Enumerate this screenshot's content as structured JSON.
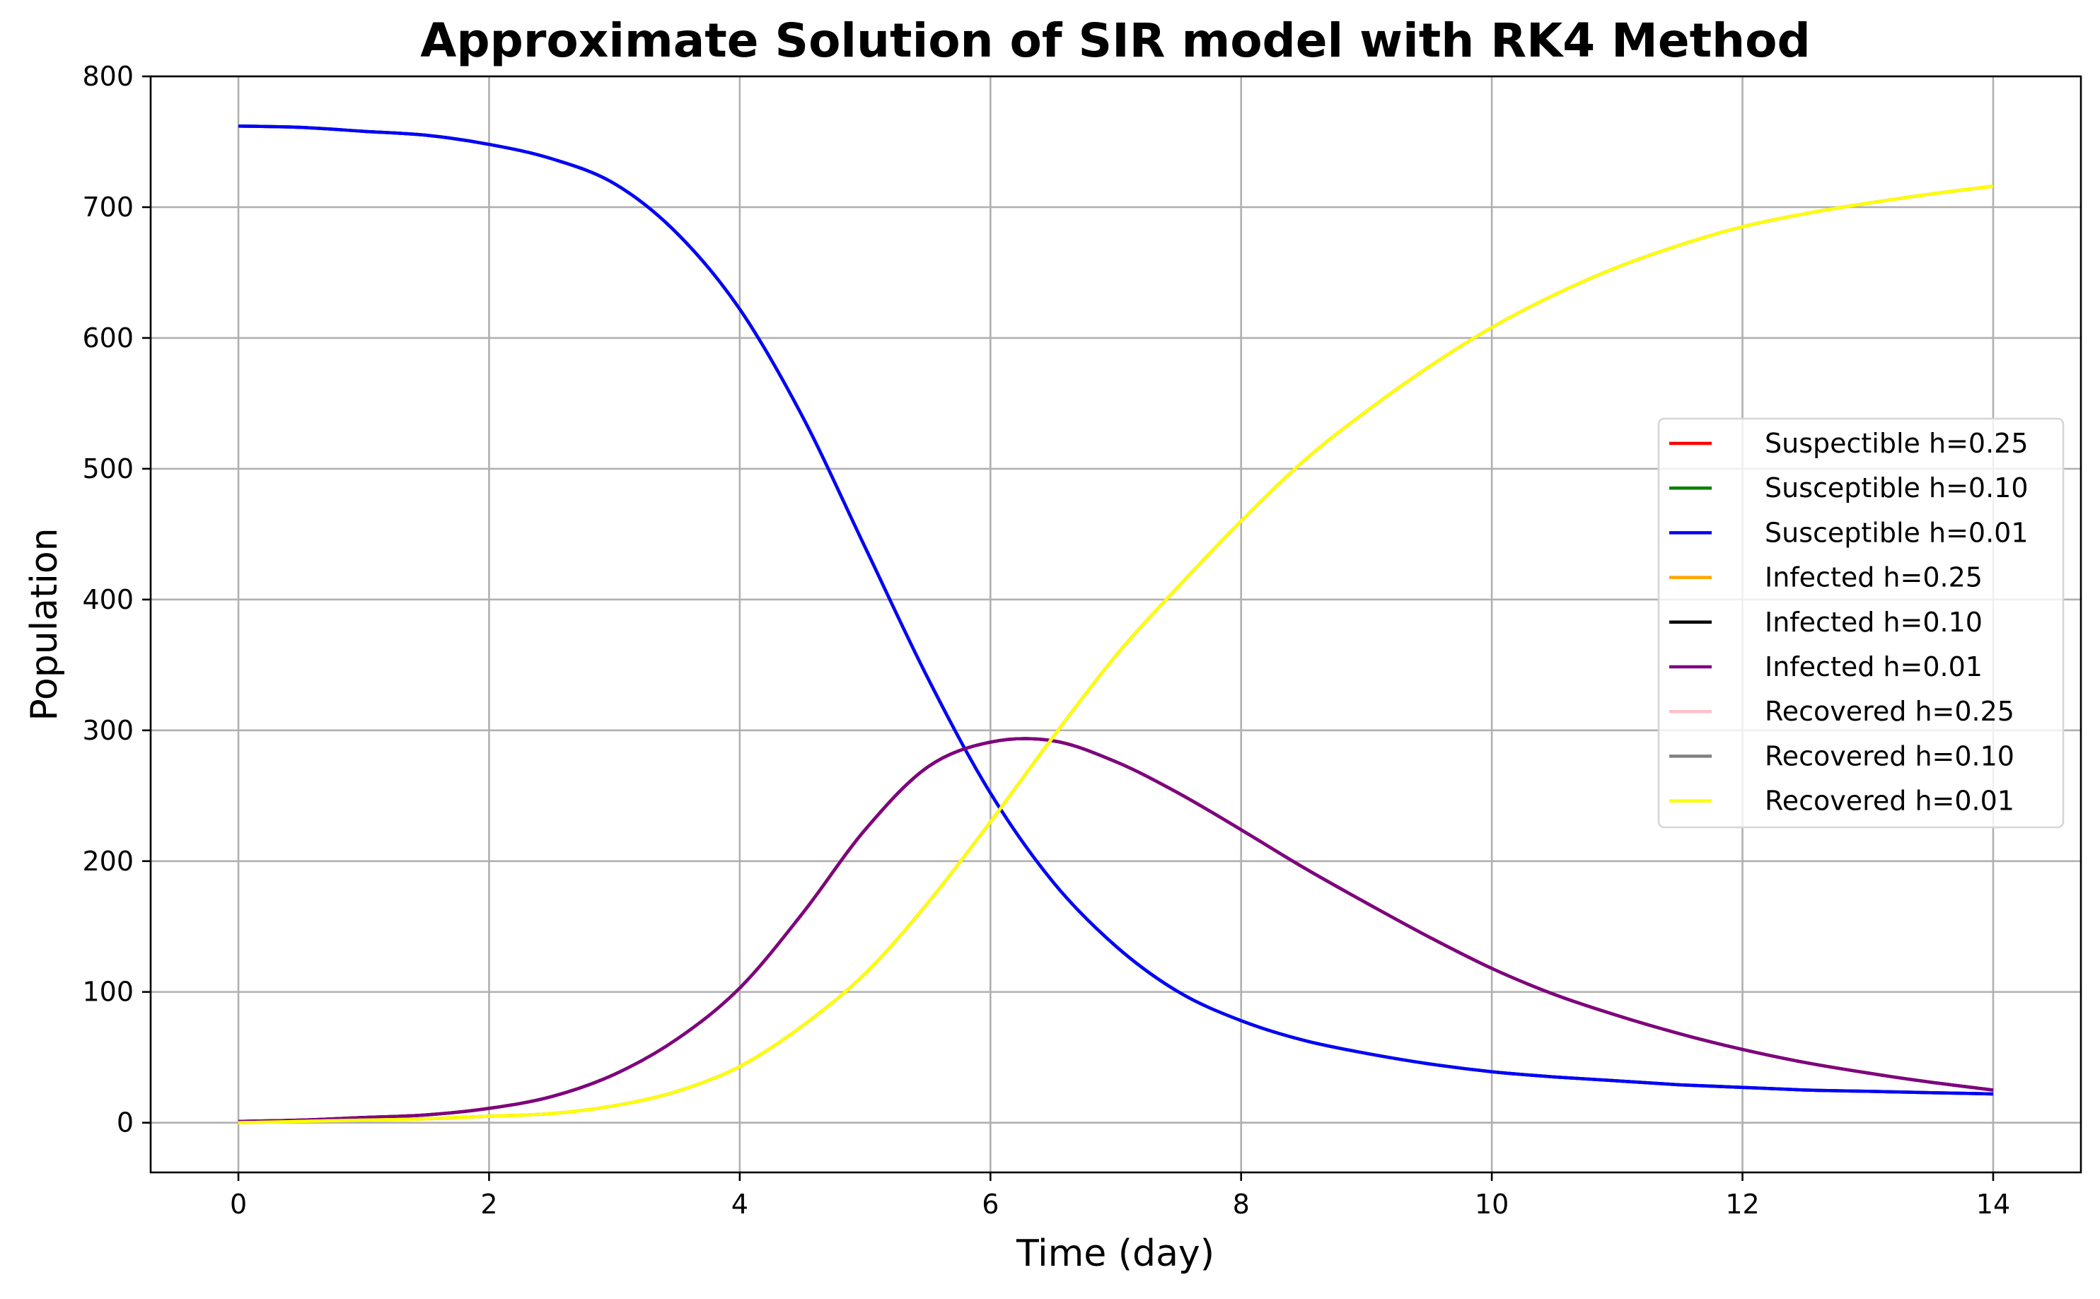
{
  "chart_data": {
    "type": "line",
    "title": "Approximate Solution of SIR model with RK4 Method",
    "xlabel": "Time (day)",
    "ylabel": "Population",
    "xlim": [
      -0.7,
      14.7
    ],
    "ylim": [
      -38,
      800
    ],
    "xticks": [
      0,
      2,
      4,
      6,
      8,
      10,
      12,
      14
    ],
    "yticks": [
      0,
      100,
      200,
      300,
      400,
      500,
      600,
      700,
      800
    ],
    "grid": true,
    "legend_position": "center-right",
    "series": [
      {
        "name": "Suspectible h=0.25",
        "color": "#ff0000",
        "x": [
          0,
          0.5,
          1,
          1.5,
          2,
          2.5,
          3,
          3.5,
          4,
          4.5,
          5,
          5.5,
          6,
          6.5,
          7,
          7.5,
          8,
          8.5,
          9,
          9.5,
          10,
          10.5,
          11,
          11.5,
          12,
          12.5,
          13,
          13.5,
          14
        ],
        "y": [
          762,
          761,
          758,
          755,
          748,
          737,
          718,
          680,
          622,
          540,
          440,
          340,
          252,
          184,
          135,
          100,
          78,
          63,
          53,
          45,
          39,
          35,
          32,
          29,
          27,
          25,
          24,
          23,
          22
        ]
      },
      {
        "name": "Susceptible h=0.10",
        "color": "#008000",
        "x": [
          0,
          0.5,
          1,
          1.5,
          2,
          2.5,
          3,
          3.5,
          4,
          4.5,
          5,
          5.5,
          6,
          6.5,
          7,
          7.5,
          8,
          8.5,
          9,
          9.5,
          10,
          10.5,
          11,
          11.5,
          12,
          12.5,
          13,
          13.5,
          14
        ],
        "y": [
          762,
          761,
          758,
          755,
          748,
          737,
          718,
          680,
          622,
          540,
          440,
          340,
          252,
          184,
          135,
          100,
          78,
          63,
          53,
          45,
          39,
          35,
          32,
          29,
          27,
          25,
          24,
          23,
          22
        ]
      },
      {
        "name": "Susceptible h=0.01",
        "color": "#0000ff",
        "x": [
          0,
          0.5,
          1,
          1.5,
          2,
          2.5,
          3,
          3.5,
          4,
          4.5,
          5,
          5.5,
          6,
          6.5,
          7,
          7.5,
          8,
          8.5,
          9,
          9.5,
          10,
          10.5,
          11,
          11.5,
          12,
          12.5,
          13,
          13.5,
          14
        ],
        "y": [
          762,
          761,
          758,
          755,
          748,
          737,
          718,
          680,
          622,
          540,
          440,
          340,
          252,
          184,
          135,
          100,
          78,
          63,
          53,
          45,
          39,
          35,
          32,
          29,
          27,
          25,
          24,
          23,
          22
        ]
      },
      {
        "name": "Infected h=0.25",
        "color": "#ffa500",
        "x": [
          0,
          0.5,
          1,
          1.5,
          2,
          2.5,
          3,
          3.5,
          4,
          4.5,
          5,
          5.5,
          6,
          6.5,
          7,
          7.5,
          8,
          8.5,
          9,
          9.5,
          10,
          10.5,
          11,
          11.5,
          12,
          12.5,
          13,
          13.5,
          14
        ],
        "y": [
          1,
          2,
          4,
          6,
          11,
          20,
          37,
          64,
          103,
          160,
          224,
          272,
          291,
          292,
          276,
          252,
          224,
          195,
          168,
          142,
          118,
          98,
          82,
          68,
          56,
          46,
          38,
          31,
          25
        ]
      },
      {
        "name": "Infected h=0.10",
        "color": "#000000",
        "x": [
          0,
          0.5,
          1,
          1.5,
          2,
          2.5,
          3,
          3.5,
          4,
          4.5,
          5,
          5.5,
          6,
          6.5,
          7,
          7.5,
          8,
          8.5,
          9,
          9.5,
          10,
          10.5,
          11,
          11.5,
          12,
          12.5,
          13,
          13.5,
          14
        ],
        "y": [
          1,
          2,
          4,
          6,
          11,
          20,
          37,
          64,
          103,
          160,
          224,
          272,
          291,
          292,
          276,
          252,
          224,
          195,
          168,
          142,
          118,
          98,
          82,
          68,
          56,
          46,
          38,
          31,
          25
        ]
      },
      {
        "name": "Infected h=0.01",
        "color": "#800080",
        "x": [
          0,
          0.5,
          1,
          1.5,
          2,
          2.5,
          3,
          3.5,
          4,
          4.5,
          5,
          5.5,
          6,
          6.5,
          7,
          7.5,
          8,
          8.5,
          9,
          9.5,
          10,
          10.5,
          11,
          11.5,
          12,
          12.5,
          13,
          13.5,
          14
        ],
        "y": [
          1,
          2,
          4,
          6,
          11,
          20,
          37,
          64,
          103,
          160,
          224,
          272,
          291,
          292,
          276,
          252,
          224,
          195,
          168,
          142,
          118,
          98,
          82,
          68,
          56,
          46,
          38,
          31,
          25
        ]
      },
      {
        "name": "Recovered h=0.25",
        "color": "#ffc0cb",
        "x": [
          0,
          0.5,
          1,
          1.5,
          2,
          2.5,
          3,
          3.5,
          4,
          4.5,
          5,
          5.5,
          6,
          6.5,
          7,
          7.5,
          8,
          8.5,
          9,
          9.5,
          10,
          10.5,
          11,
          11.5,
          12,
          12.5,
          13,
          13.5,
          14
        ],
        "y": [
          0,
          1,
          2,
          3,
          5,
          7,
          13,
          24,
          43,
          74,
          114,
          168,
          230,
          295,
          357,
          410,
          460,
          506,
          544,
          578,
          608,
          633,
          654,
          671,
          685,
          695,
          703,
          710,
          716
        ]
      },
      {
        "name": "Recovered h=0.10",
        "color": "#808080",
        "x": [
          0,
          0.5,
          1,
          1.5,
          2,
          2.5,
          3,
          3.5,
          4,
          4.5,
          5,
          5.5,
          6,
          6.5,
          7,
          7.5,
          8,
          8.5,
          9,
          9.5,
          10,
          10.5,
          11,
          11.5,
          12,
          12.5,
          13,
          13.5,
          14
        ],
        "y": [
          0,
          1,
          2,
          3,
          5,
          7,
          13,
          24,
          43,
          74,
          114,
          168,
          230,
          295,
          357,
          410,
          460,
          506,
          544,
          578,
          608,
          633,
          654,
          671,
          685,
          695,
          703,
          710,
          716
        ]
      },
      {
        "name": "Recovered h=0.01",
        "color": "#ffff00",
        "x": [
          0,
          0.5,
          1,
          1.5,
          2,
          2.5,
          3,
          3.5,
          4,
          4.5,
          5,
          5.5,
          6,
          6.5,
          7,
          7.5,
          8,
          8.5,
          9,
          9.5,
          10,
          10.5,
          11,
          11.5,
          12,
          12.5,
          13,
          13.5,
          14
        ],
        "y": [
          0,
          1,
          2,
          3,
          5,
          7,
          13,
          24,
          43,
          74,
          114,
          168,
          230,
          295,
          357,
          410,
          460,
          506,
          544,
          578,
          608,
          633,
          654,
          671,
          685,
          695,
          703,
          710,
          716
        ]
      }
    ]
  }
}
